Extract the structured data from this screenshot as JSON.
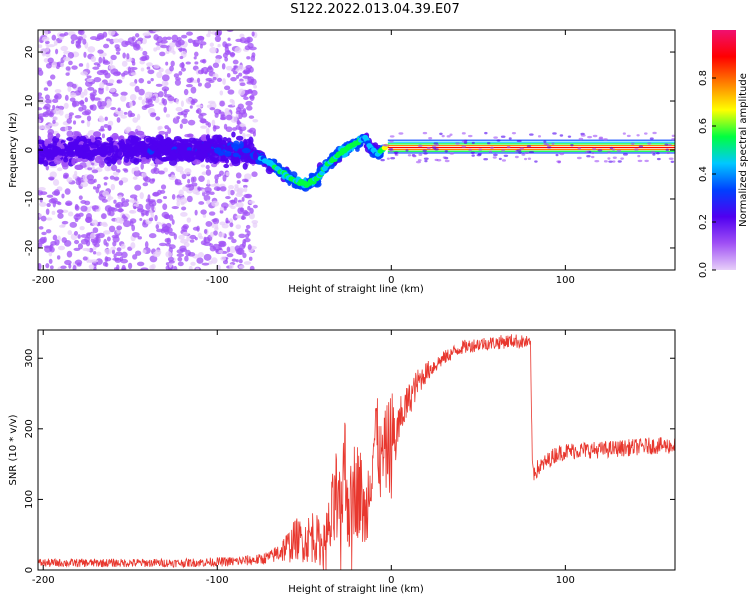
{
  "title": "S122.2022.013.04.39.E07",
  "chart_data": [
    {
      "type": "heatmap",
      "xlabel": "Height of straight line (km)",
      "ylabel": "Frequency (Hz)",
      "xlim": [
        -203,
        163
      ],
      "ylim": [
        -24.5,
        24.5
      ],
      "xticks": [
        -200,
        -100,
        0,
        100
      ],
      "xtick_labels": [
        "-200",
        "-100",
        "0",
        "100"
      ],
      "yticks": [
        -20,
        -10,
        0,
        10,
        20
      ],
      "ytick_labels": [
        "-20",
        "-10",
        "0",
        "10",
        "20"
      ],
      "grid": false,
      "colorbar": {
        "label": "Normalized spectral amplitude",
        "range": [
          0,
          1
        ],
        "ticks": [
          0.0,
          0.2,
          0.4,
          0.6,
          0.8
        ],
        "tick_labels": [
          "0.0",
          "0.2",
          "0.4",
          "0.6",
          "0.8"
        ],
        "colors": [
          "#e7cff9",
          "#a050f5",
          "#5000f0",
          "#0040ff",
          "#00c8ff",
          "#00ff40",
          "#ffff00",
          "#ff8000",
          "#ff0000",
          "#f01070"
        ]
      },
      "ridge": {
        "x": [
          -200,
          -160,
          -120,
          -90,
          -75,
          -65,
          -55,
          -48,
          -42,
          -37,
          -32,
          -27,
          -22,
          -18,
          -15,
          -12,
          -8,
          -4,
          0,
          20,
          60,
          100,
          163
        ],
        "y": [
          0,
          0,
          0,
          0,
          -1.5,
          -4,
          -6.5,
          -7,
          -5.5,
          -3,
          -1.5,
          0,
          1,
          1.8,
          2.5,
          0.5,
          -1,
          0.5,
          0.5,
          0.5,
          0.5,
          0.5,
          0.5
        ],
        "amplitude": [
          0.22,
          0.22,
          0.25,
          0.28,
          0.32,
          0.4,
          0.42,
          0.45,
          0.4,
          0.38,
          0.42,
          0.45,
          0.45,
          0.42,
          0.3,
          0.32,
          0.32,
          0.5,
          0.85,
          0.9,
          0.9,
          0.9,
          0.9
        ]
      }
    },
    {
      "type": "line",
      "xlabel": "Height of straight line (km)",
      "ylabel": "SNR (10 * v/v)",
      "xlim": [
        -203,
        163
      ],
      "ylim": [
        0,
        340
      ],
      "xticks": [
        -200,
        -100,
        0,
        100
      ],
      "xtick_labels": [
        "-200",
        "-100",
        "0",
        "100"
      ],
      "yticks": [
        0,
        100,
        200,
        300
      ],
      "ytick_labels": [
        "0",
        "100",
        "200",
        "300"
      ],
      "grid": false,
      "series": [
        {
          "color": "#e8372e",
          "x": [
            -203,
            -180,
            -150,
            -120,
            -90,
            -75,
            -68,
            -62,
            -58,
            -55,
            -50,
            -45,
            -40,
            -35,
            -32,
            -30,
            -27,
            -24,
            -21,
            -18,
            -15,
            -12,
            -9,
            -6,
            -3,
            0,
            3,
            6,
            10,
            15,
            20,
            25,
            30,
            40,
            50,
            60,
            70,
            78,
            80,
            81,
            82,
            85,
            90,
            95,
            100,
            110,
            120,
            130,
            140,
            150,
            163
          ],
          "y": [
            10,
            10,
            10,
            10,
            12,
            15,
            20,
            30,
            35,
            45,
            40,
            50,
            35,
            60,
            100,
            70,
            150,
            80,
            120,
            110,
            70,
            140,
            200,
            150,
            170,
            180,
            190,
            220,
            240,
            265,
            280,
            290,
            300,
            315,
            320,
            322,
            325,
            322,
            318,
            150,
            140,
            145,
            155,
            165,
            168,
            170,
            170,
            172,
            174,
            176,
            176
          ],
          "noise": [
            6,
            6,
            6,
            6,
            7,
            8,
            10,
            20,
            25,
            30,
            30,
            40,
            30,
            50,
            80,
            60,
            90,
            60,
            70,
            70,
            50,
            60,
            60,
            60,
            60,
            80,
            40,
            30,
            25,
            20,
            15,
            12,
            10,
            10,
            10,
            10,
            10,
            10,
            10,
            15,
            15,
            12,
            12,
            12,
            12,
            12,
            12,
            12,
            12,
            12,
            12
          ]
        }
      ]
    }
  ]
}
